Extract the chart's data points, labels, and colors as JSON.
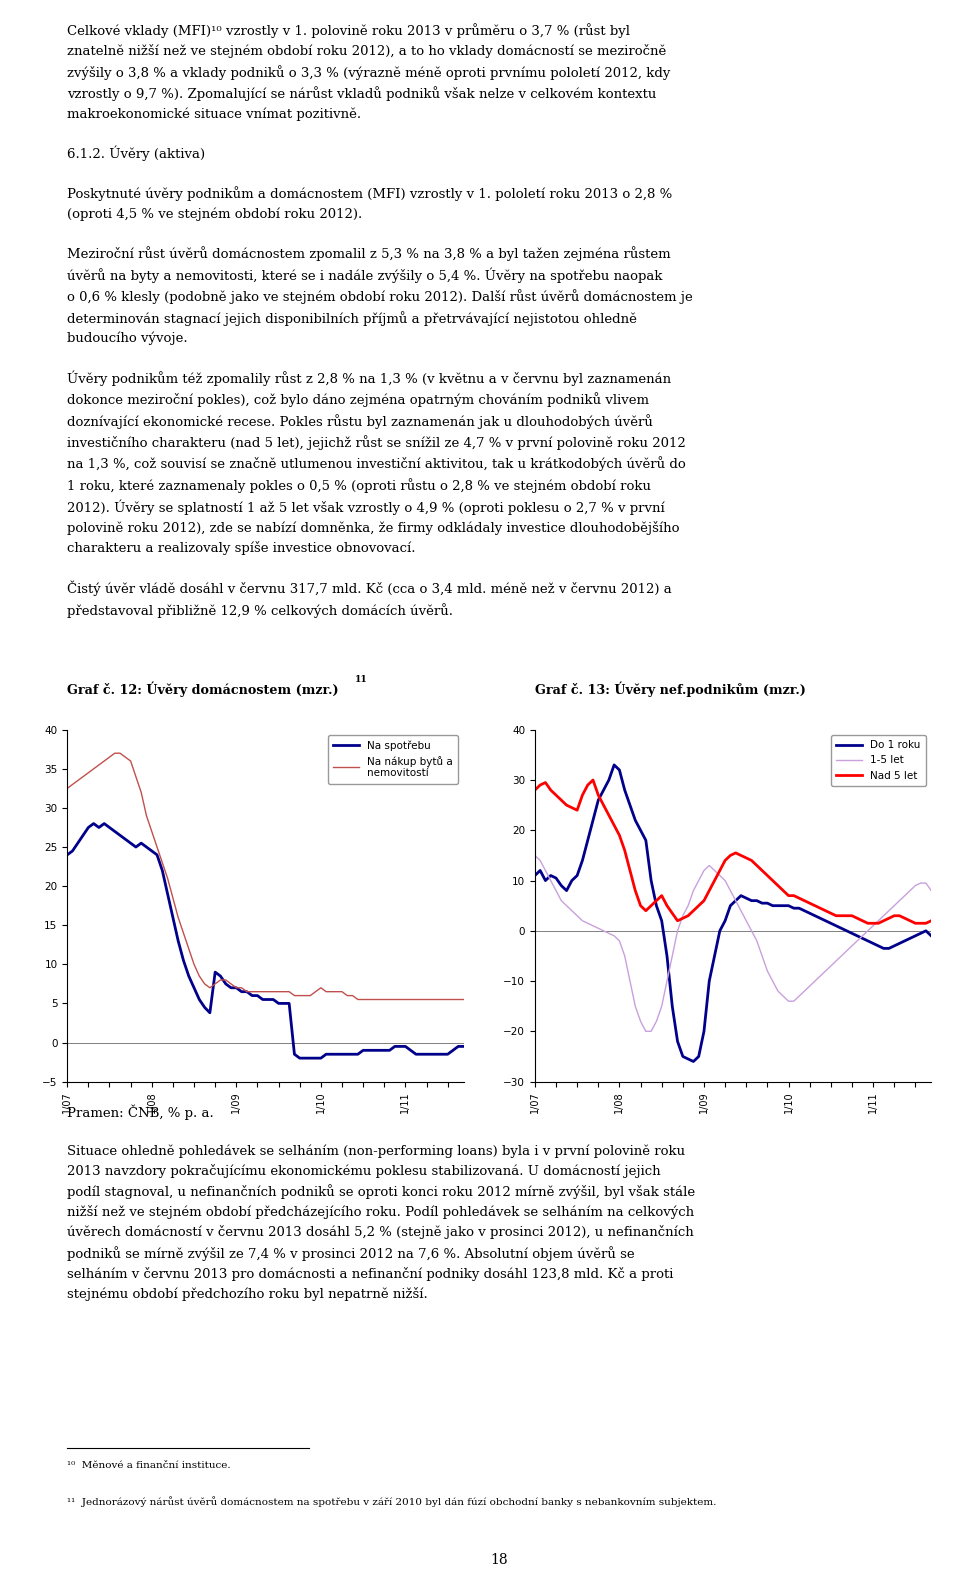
{
  "chart1_title": "Graf č. 12: Úvvěry domácnostem (mzr.)¹¹",
  "chart2_title": "Graf č. 13: Úvvěry nef.podnikům (mzr.)",
  "chart1_yticks": [
    -5,
    0,
    5,
    10,
    15,
    20,
    25,
    30,
    35,
    40
  ],
  "chart1_ylim": [
    -5,
    40
  ],
  "chart2_yticks": [
    -30,
    -20,
    -10,
    0,
    10,
    20,
    30,
    40
  ],
  "chart2_ylim": [
    -30,
    40
  ],
  "chart1_line1_color": "#00008B",
  "chart1_line2_color": "#C0504D",
  "chart2_line1_color": "#00008B",
  "chart2_line2_color": "#C9A0DC",
  "chart2_line3_color": "#FF0000",
  "chart1_line1_label": "Na spotřebu",
  "chart1_line2_label": "Na nákup bytů a\nnemovitostí",
  "chart2_line1_label": "Do 1 roku",
  "chart2_line2_label": "1-5 let",
  "chart2_line3_label": "Nad 5 let",
  "source_text": "Pramen: ČNB, % p. a.",
  "footnote10": "¹⁰  Měnové a finanční instituce.",
  "footnote11": "¹¹  Jednorázový nárůst úvěrů domácnostem na spotřebu v září 2010 byl dán fúzí obchodní banky s nebankovním subjektem.",
  "page_number": "18",
  "chart1_na_spotrebu": [
    24.0,
    24.5,
    25.5,
    26.5,
    27.5,
    28.0,
    27.5,
    28.0,
    27.5,
    27.0,
    26.5,
    26.0,
    25.5,
    25.0,
    25.5,
    25.0,
    24.5,
    24.0,
    22.0,
    19.0,
    16.0,
    13.0,
    10.5,
    8.5,
    7.0,
    5.5,
    4.5,
    3.8,
    9.0,
    8.5,
    7.5,
    7.0,
    7.0,
    6.5,
    6.5,
    6.0,
    6.0,
    5.5,
    5.5,
    5.5,
    5.0,
    5.0,
    5.0,
    -1.5,
    -2.0,
    -2.0,
    -2.0,
    -2.0,
    -2.0,
    -1.5,
    -1.5,
    -1.5,
    -1.5,
    -1.5,
    -1.5,
    -1.5,
    -1.0,
    -1.0,
    -1.0,
    -1.0,
    -1.0,
    -1.0,
    -0.5,
    -0.5,
    -0.5,
    -1.0,
    -1.5,
    -1.5,
    -1.5,
    -1.5,
    -1.5,
    -1.5,
    -1.5,
    -1.0,
    -0.5,
    -0.5
  ],
  "chart1_na_nakup": [
    32.5,
    33.0,
    33.5,
    34.0,
    34.5,
    35.0,
    35.5,
    36.0,
    36.5,
    37.0,
    37.0,
    36.5,
    36.0,
    34.0,
    32.0,
    29.0,
    27.0,
    25.0,
    23.0,
    21.0,
    18.5,
    16.0,
    14.0,
    12.0,
    10.0,
    8.5,
    7.5,
    7.0,
    7.5,
    8.0,
    8.0,
    7.5,
    7.0,
    7.0,
    6.5,
    6.5,
    6.5,
    6.5,
    6.5,
    6.5,
    6.5,
    6.5,
    6.5,
    6.0,
    6.0,
    6.0,
    6.0,
    6.5,
    7.0,
    6.5,
    6.5,
    6.5,
    6.5,
    6.0,
    6.0,
    5.5,
    5.5,
    5.5,
    5.5,
    5.5,
    5.5,
    5.5,
    5.5,
    5.5,
    5.5,
    5.5,
    5.5,
    5.5,
    5.5,
    5.5,
    5.5,
    5.5,
    5.5,
    5.5,
    5.5,
    5.5
  ],
  "chart2_do1roku": [
    11.0,
    12.0,
    10.0,
    11.0,
    10.5,
    9.0,
    8.0,
    10.0,
    11.0,
    14.0,
    18.0,
    22.0,
    26.0,
    28.0,
    30.0,
    33.0,
    32.0,
    28.0,
    25.0,
    22.0,
    20.0,
    18.0,
    10.0,
    5.0,
    2.0,
    -5.0,
    -15.0,
    -22.0,
    -25.0,
    -25.5,
    -26.0,
    -25.0,
    -20.0,
    -10.0,
    -5.0,
    0.0,
    2.0,
    5.0,
    6.0,
    7.0,
    6.5,
    6.0,
    6.0,
    5.5,
    5.5,
    5.0,
    5.0,
    5.0,
    5.0,
    4.5,
    4.5,
    4.0,
    3.5,
    3.0,
    2.5,
    2.0,
    1.5,
    1.0,
    0.5,
    0.0,
    -0.5,
    -1.0,
    -1.5,
    -2.0,
    -2.5,
    -3.0,
    -3.5,
    -3.5,
    -3.0,
    -2.5,
    -2.0,
    -1.5,
    -1.0,
    -0.5,
    0.0,
    -1.0
  ],
  "chart2_15let": [
    15.0,
    14.0,
    12.0,
    10.0,
    8.0,
    6.0,
    5.0,
    4.0,
    3.0,
    2.0,
    1.5,
    1.0,
    0.5,
    0.0,
    -0.5,
    -1.0,
    -2.0,
    -5.0,
    -10.0,
    -15.0,
    -18.0,
    -20.0,
    -20.0,
    -18.0,
    -15.0,
    -10.0,
    -5.0,
    0.0,
    3.0,
    5.0,
    8.0,
    10.0,
    12.0,
    13.0,
    12.0,
    11.0,
    10.0,
    8.0,
    6.0,
    4.0,
    2.0,
    0.0,
    -2.0,
    -5.0,
    -8.0,
    -10.0,
    -12.0,
    -13.0,
    -14.0,
    -14.0,
    -13.0,
    -12.0,
    -11.0,
    -10.0,
    -9.0,
    -8.0,
    -7.0,
    -6.0,
    -5.0,
    -4.0,
    -3.0,
    -2.0,
    -1.0,
    0.0,
    1.0,
    2.0,
    3.0,
    4.0,
    5.0,
    6.0,
    7.0,
    8.0,
    9.0,
    9.5,
    9.5,
    8.0
  ],
  "chart2_nad5let": [
    28.0,
    29.0,
    29.5,
    28.0,
    27.0,
    26.0,
    25.0,
    24.5,
    24.0,
    27.0,
    29.0,
    30.0,
    27.0,
    25.0,
    23.0,
    21.0,
    19.0,
    16.0,
    12.0,
    8.0,
    5.0,
    4.0,
    5.0,
    6.0,
    7.0,
    5.0,
    3.5,
    2.0,
    2.5,
    3.0,
    4.0,
    5.0,
    6.0,
    8.0,
    10.0,
    12.0,
    14.0,
    15.0,
    15.5,
    15.0,
    14.5,
    14.0,
    13.0,
    12.0,
    11.0,
    10.0,
    9.0,
    8.0,
    7.0,
    7.0,
    6.5,
    6.0,
    5.5,
    5.0,
    4.5,
    4.0,
    3.5,
    3.0,
    3.0,
    3.0,
    3.0,
    2.5,
    2.0,
    1.5,
    1.5,
    1.5,
    2.0,
    2.5,
    3.0,
    3.0,
    2.5,
    2.0,
    1.5,
    1.5,
    1.5,
    2.0
  ]
}
